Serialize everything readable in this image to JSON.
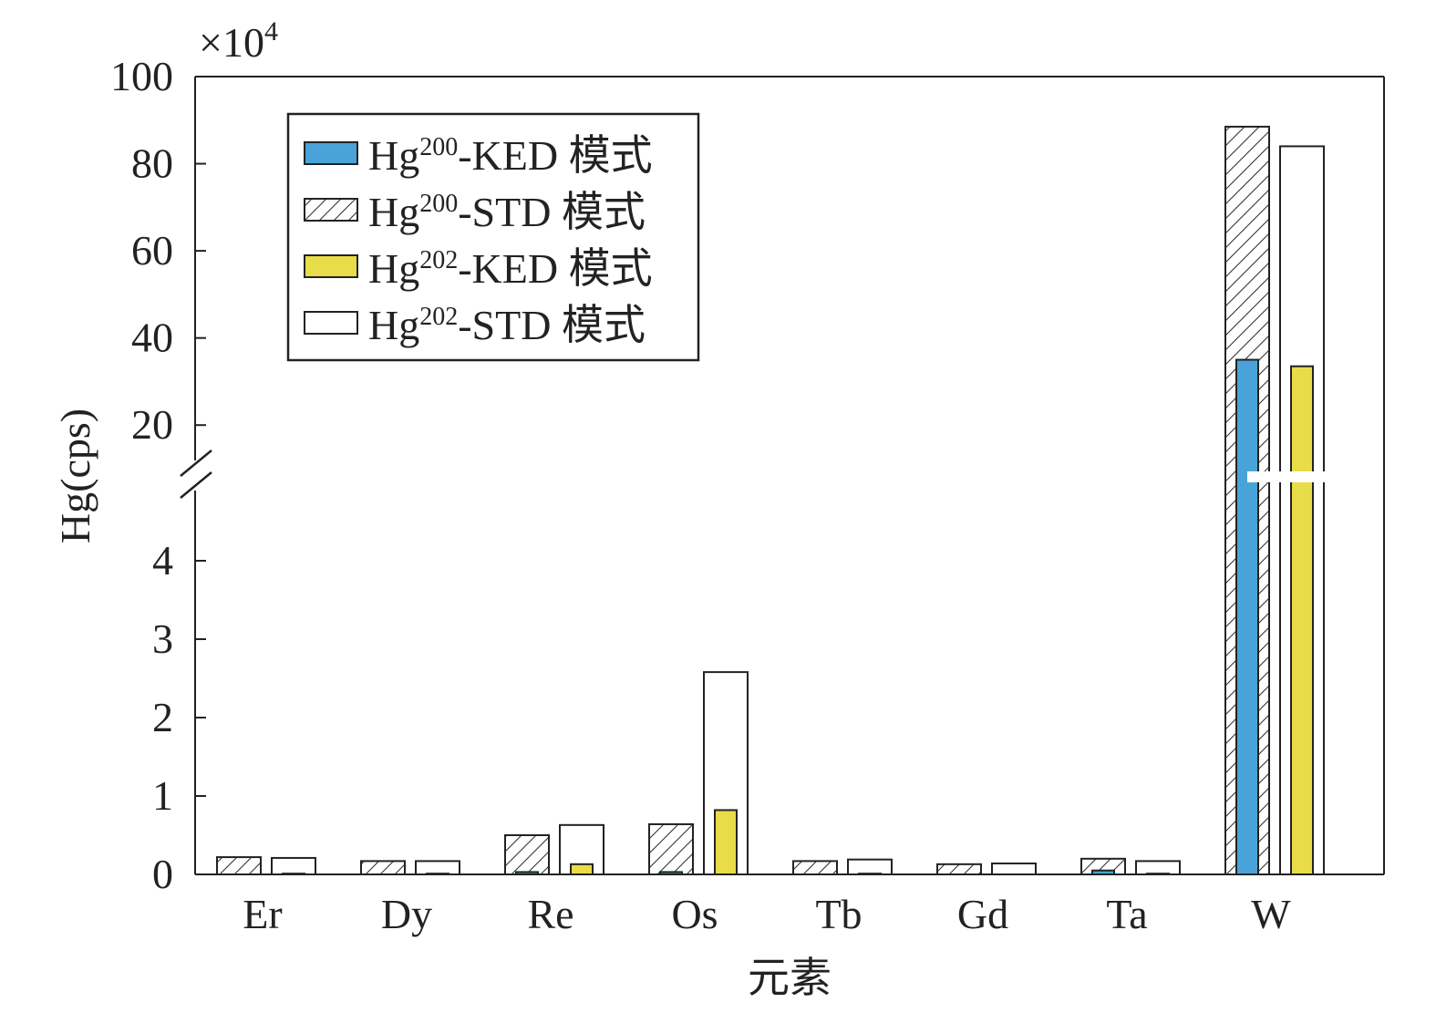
{
  "chart_data": {
    "type": "bar",
    "xlabel": "元素",
    "ylabel": "Hg(cps)",
    "y_multiplier": {
      "base": "×10",
      "exp": "4"
    },
    "categories": [
      "Er",
      "Dy",
      "Re",
      "Os",
      "Tb",
      "Gd",
      "Ta",
      "W"
    ],
    "series": [
      {
        "name": {
          "pre": "Hg",
          "sup": "200",
          "post": "-KED 模式"
        },
        "style": "solid",
        "color": "#4aa3d8",
        "values": [
          0,
          0,
          0.03,
          0.03,
          0,
          0,
          0.05,
          35
        ]
      },
      {
        "name": {
          "pre": "Hg",
          "sup": "200",
          "post": "-STD 模式"
        },
        "style": "hatch",
        "color": "#ffffff",
        "values": [
          0.22,
          0.17,
          0.5,
          0.64,
          0.17,
          0.13,
          0.2,
          88.5
        ]
      },
      {
        "name": {
          "pre": "Hg",
          "sup": "202",
          "post": "-KED 模式"
        },
        "style": "solid",
        "color": "#e8dc48",
        "values": [
          0.01,
          0.01,
          0.13,
          0.82,
          0.01,
          0,
          0.01,
          33.5
        ]
      },
      {
        "name": {
          "pre": "Hg",
          "sup": "202",
          "post": "-STD 模式"
        },
        "style": "empty",
        "color": "#ffffff",
        "values": [
          0.21,
          0.17,
          0.63,
          2.58,
          0.19,
          0.14,
          0.17,
          84
        ]
      }
    ],
    "y_axis_break": true,
    "lower_segment": {
      "ylim": [
        0,
        5
      ],
      "ticks": [
        "0",
        "1",
        "2",
        "3",
        "4"
      ]
    },
    "upper_segment": {
      "ylim": [
        10,
        100
      ],
      "ticks": [
        "20",
        "40",
        "60",
        "80",
        "100"
      ]
    },
    "legend_position": "top-left",
    "grid": false
  }
}
